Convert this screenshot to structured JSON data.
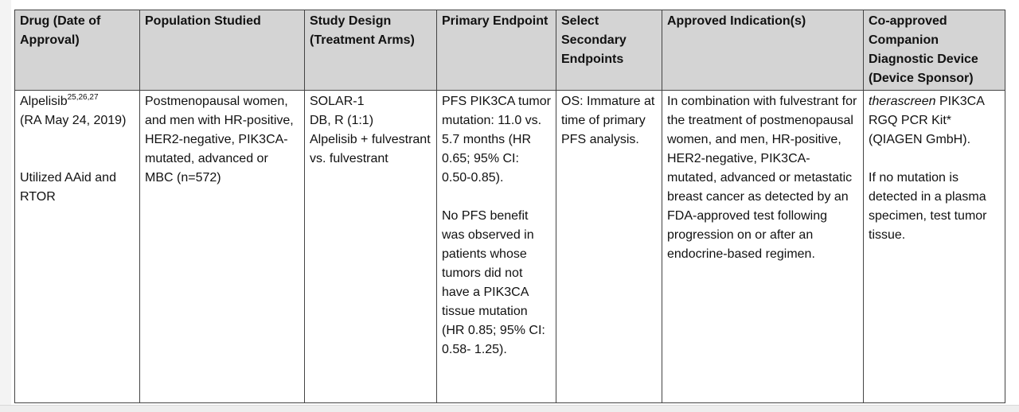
{
  "table": {
    "headers": [
      "Drug (Date of Approval)",
      "Population Studied",
      "Study Design (Treatment Arms)",
      "Primary Endpoint",
      "Select Secondary Endpoints",
      "Approved Indication(s)",
      "Co-approved Companion Diagnostic Device (Device Sponsor)"
    ],
    "row": {
      "drug_name": "Alpelisib",
      "drug_refs": "25,26,27",
      "drug_approval": "(RA May 24, 2019)",
      "drug_note": "Utilized AAid and RTOR",
      "population": "Postmenopausal women, and men with HR-positive, HER2-negative, PIK3CA-mutated, advanced or MBC (n=572)",
      "design": "SOLAR-1\nDB, R (1:1)\nAlpelisib + fulvestrant vs. fulvestrant",
      "primary_endpoint_1": "PFS PIK3CA tumor mutation: 11.0 vs. 5.7 months (HR 0.65; 95% CI: 0.50-0.85).",
      "primary_endpoint_2": "No PFS benefit was observed in patients whose tumors did not have a PIK3CA tissue mutation (HR 0.85; 95% CI: 0.58- 1.25).",
      "secondary": "OS: Immature at time of primary PFS analysis.",
      "indication": "In combination with fulvestrant for the treatment of postmenopausal women, and men, HR-positive, HER2-negative, PIK3CA-mutated, advanced or metastatic breast cancer as detected by an FDA-approved test following progression on or after an endocrine-based regimen.",
      "device_italic": "therascreen",
      "device_rest": " PIK3CA RGQ PCR Kit* (QIAGEN GmbH).",
      "device_note": "If no mutation is detected in a plasma specimen, test tumor tissue."
    }
  }
}
